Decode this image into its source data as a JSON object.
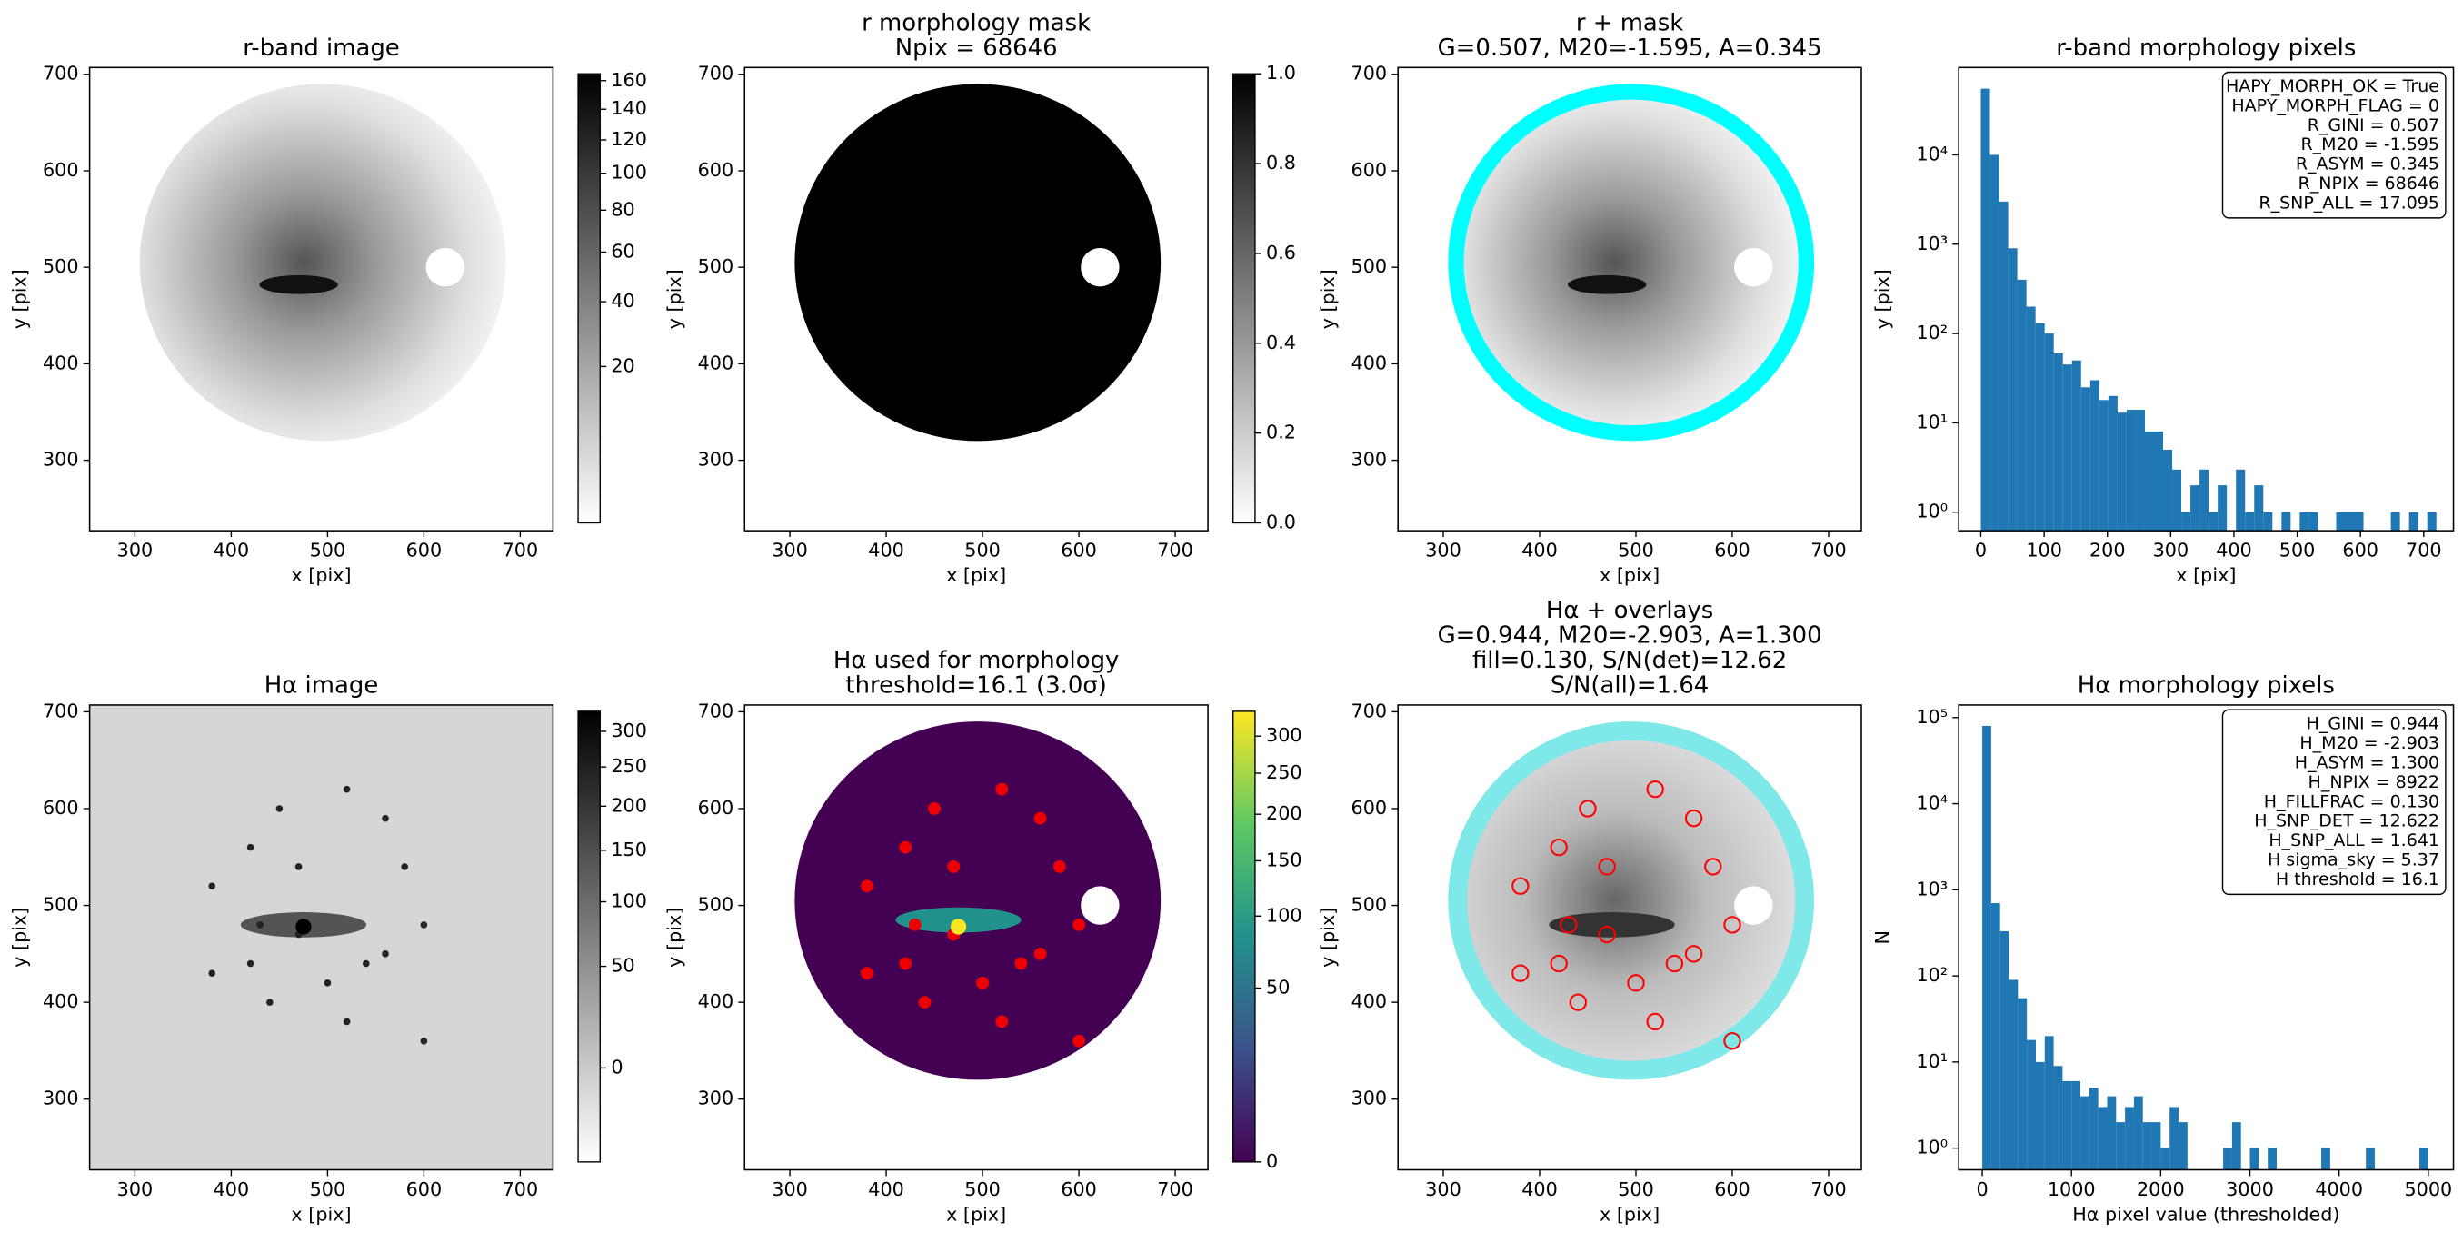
{
  "chart_data": [
    {
      "type": "image",
      "title": [
        "r-band image"
      ],
      "xlabel": "x [pix]",
      "ylabel": "y [pix]",
      "cmap": "Greys",
      "xlim": [
        253,
        734
      ],
      "ylim": [
        227,
        707
      ],
      "xticks": [
        300,
        400,
        500,
        600,
        700
      ],
      "yticks": [
        300,
        400,
        500,
        600,
        700
      ],
      "colorbar": {
        "scale": "sqrt",
        "clim": [
          0,
          165
        ],
        "ticks": [
          20,
          40,
          60,
          80,
          100,
          120,
          140,
          160
        ]
      }
    },
    {
      "type": "image",
      "title": [
        "r morphology mask",
        "Npix = 68646"
      ],
      "xlabel": "x [pix]",
      "ylabel": "y [pix]",
      "cmap": "Greys",
      "xlim": [
        253,
        734
      ],
      "ylim": [
        227,
        707
      ],
      "xticks": [
        300,
        400,
        500,
        600,
        700
      ],
      "yticks": [
        300,
        400,
        500,
        600,
        700
      ],
      "colorbar": {
        "scale": "linear",
        "clim": [
          0,
          1
        ],
        "ticks": [
          {
            "value": 0,
            "label": "0.0"
          },
          0.2,
          0.4,
          0.6,
          0.8,
          {
            "value": 1,
            "label": "1.0"
          }
        ]
      }
    },
    {
      "type": "image",
      "title": [
        "r + mask",
        "G=0.507, M20=-1.595, A=0.345"
      ],
      "xlabel": "x [pix]",
      "ylabel": "y [pix]",
      "cmap": "Greys",
      "xlim": [
        253,
        734
      ],
      "ylim": [
        227,
        707
      ],
      "xticks": [
        300,
        400,
        500,
        600,
        700
      ],
      "yticks": [
        300,
        400,
        500,
        600,
        700
      ]
    },
    {
      "type": "histogram",
      "title": [
        "r-band morphology pixels"
      ],
      "xlabel": "x [pix]",
      "ylabel": "y [pix]",
      "color": "#1f77b4",
      "log_y": true,
      "xlim": [
        -35,
        747
      ],
      "ylim": [
        0.62,
        95000
      ],
      "xticks": [
        0,
        100,
        200,
        300,
        400,
        500,
        600,
        700
      ],
      "yticks": [
        {
          "value": 1,
          "label": "10⁰"
        },
        {
          "value": 10,
          "label": "10¹"
        },
        {
          "value": 100,
          "label": "10²"
        },
        {
          "value": 1000,
          "label": "10³"
        },
        {
          "value": 10000,
          "label": "10⁴"
        }
      ],
      "bins": [
        0,
        14.4,
        28.8,
        43.2,
        57.6,
        72,
        86.4,
        100.8,
        115.2,
        129.6,
        144,
        158.4,
        172.8,
        187.2,
        201.6,
        216,
        230.4,
        244.8,
        259.2,
        273.6,
        288,
        302.4,
        316.8,
        331.2,
        345.6,
        360,
        374.4,
        388.8,
        403.2,
        417.6,
        432,
        446.4,
        460.8,
        475.2,
        489.6,
        504,
        518.4,
        532.8,
        547.2,
        561.6,
        576,
        590.4,
        604.8,
        619.2,
        633.6,
        648,
        662.4,
        676.8,
        691.2,
        705.6,
        720
      ],
      "counts": [
        55000,
        10000,
        3000,
        900,
        400,
        200,
        130,
        100,
        60,
        45,
        50,
        25,
        30,
        18,
        20,
        13,
        14,
        14,
        8,
        8,
        5,
        3,
        1,
        2,
        3,
        1,
        2,
        0,
        3,
        1,
        2,
        1,
        0,
        1,
        0,
        1,
        1,
        0,
        0,
        1,
        1,
        1,
        0,
        0,
        0,
        1,
        0,
        1,
        0,
        1
      ],
      "annotation": [
        "HAPY_MORPH_OK = True",
        "HAPY_MORPH_FLAG = 0",
        "R_GINI = 0.507",
        "R_M20 = -1.595",
        "R_ASYM = 0.345",
        "R_NPIX = 68646",
        "R_SNP_ALL = 17.095"
      ]
    },
    {
      "type": "image",
      "title": [
        "Hα image"
      ],
      "xlabel": "x [pix]",
      "ylabel": "y [pix]",
      "cmap": "Greys",
      "xlim": [
        253,
        734
      ],
      "ylim": [
        227,
        707
      ],
      "xticks": [
        300,
        400,
        500,
        600,
        700
      ],
      "yticks": [
        300,
        400,
        500,
        600,
        700
      ],
      "colorbar": {
        "scale": "sqrt",
        "clim": [
          -15,
          330
        ],
        "ticks": [
          0,
          50,
          100,
          150,
          200,
          250,
          300
        ]
      }
    },
    {
      "type": "image",
      "title": [
        "Hα used for morphology",
        "threshold=16.1 (3.0σ)"
      ],
      "xlabel": "x [pix]",
      "ylabel": "y [pix]",
      "cmap": "viridis",
      "xlim": [
        253,
        734
      ],
      "ylim": [
        227,
        707
      ],
      "xticks": [
        300,
        400,
        500,
        600,
        700
      ],
      "yticks": [
        300,
        400,
        500,
        600,
        700
      ],
      "colorbar": {
        "scale": "sqrt",
        "clim": [
          0,
          336
        ],
        "ticks": [
          0,
          50,
          100,
          150,
          200,
          250,
          300
        ]
      }
    },
    {
      "type": "image",
      "title": [
        "Hα + overlays",
        "G=0.944, M20=-2.903, A=1.300",
        "fill=0.130, S/N(det)=12.62",
        "S/N(all)=1.64"
      ],
      "xlabel": "x [pix]",
      "ylabel": "y [pix]",
      "cmap": "Greys",
      "xlim": [
        253,
        734
      ],
      "ylim": [
        227,
        707
      ],
      "xticks": [
        300,
        400,
        500,
        600,
        700
      ],
      "yticks": [
        300,
        400,
        500,
        600,
        700
      ]
    },
    {
      "type": "histogram",
      "title": [
        "Hα morphology pixels"
      ],
      "xlabel": "Hα pixel value (thresholded)",
      "ylabel": "N",
      "color": "#1f77b4",
      "log_y": true,
      "xlim": [
        -264,
        5282
      ],
      "ylim": [
        0.56,
        140000
      ],
      "xticks": [
        0,
        1000,
        2000,
        3000,
        4000,
        5000
      ],
      "yticks": [
        {
          "value": 1,
          "label": "10⁰"
        },
        {
          "value": 10,
          "label": "10¹"
        },
        {
          "value": 100,
          "label": "10²"
        },
        {
          "value": 1000,
          "label": "10³"
        },
        {
          "value": 10000,
          "label": "10⁴"
        },
        {
          "value": 100000,
          "label": "10⁵"
        }
      ],
      "bins": [
        0,
        100,
        200,
        300,
        400,
        500,
        600,
        700,
        800,
        900,
        1000,
        1100,
        1200,
        1300,
        1400,
        1500,
        1600,
        1700,
        1800,
        1900,
        2000,
        2100,
        2200,
        2300,
        2400,
        2500,
        2600,
        2700,
        2800,
        2900,
        3000,
        3100,
        3200,
        3300,
        3400,
        3500,
        3600,
        3700,
        3800,
        3900,
        4000,
        4100,
        4200,
        4300,
        4400,
        4500,
        4600,
        4700,
        4800,
        4900,
        5000
      ],
      "counts": [
        80000,
        700,
        330,
        90,
        55,
        18,
        10,
        20,
        9,
        6,
        6,
        4,
        5,
        3,
        4,
        2,
        3,
        4,
        2,
        2,
        1,
        3,
        2,
        0,
        0,
        0,
        0,
        1,
        2,
        0,
        1,
        0,
        1,
        0,
        0,
        0,
        0,
        0,
        1,
        0,
        0,
        0,
        0,
        1,
        0,
        0,
        0,
        0,
        0,
        1
      ],
      "annotation": [
        "H_GINI = 0.944",
        "H_M20 = -2.903",
        "H_ASYM = 1.300",
        "H_NPIX = 8922",
        "H_FILLFRAC = 0.130",
        "H_SNP_DET = 12.622",
        "H_SNP_ALL = 1.641",
        "H sigma_sky = 5.37",
        "H threshold = 16.1"
      ]
    }
  ]
}
